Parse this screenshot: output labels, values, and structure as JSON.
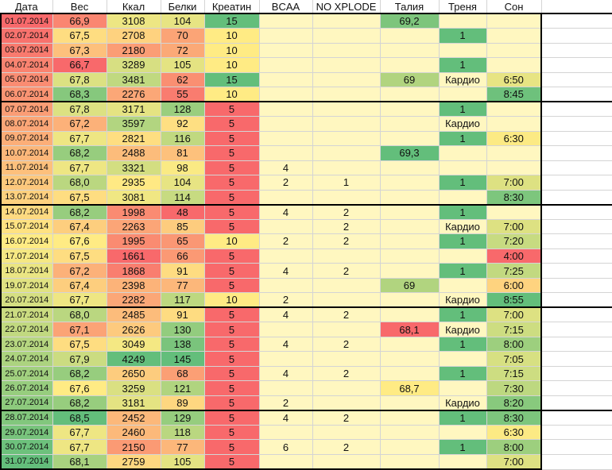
{
  "headers": [
    "Дата",
    "Вес",
    "Ккал",
    "Белки",
    "Креатин",
    "BCAA",
    "NO XPLODE",
    "Талия",
    "Треня",
    "Сон"
  ],
  "rows": [
    {
      "date": "01.07.2014",
      "ves": "66,9",
      "kcal": "3108",
      "belki": "104",
      "kreatin": "15",
      "bcaa": "",
      "nox": "",
      "talia": "69,2",
      "trenya": "",
      "son": ""
    },
    {
      "date": "02.07.2014",
      "ves": "67,5",
      "kcal": "2708",
      "belki": "70",
      "kreatin": "10",
      "bcaa": "",
      "nox": "",
      "talia": "",
      "trenya": "1",
      "son": ""
    },
    {
      "date": "03.07.2014",
      "ves": "67,3",
      "kcal": "2180",
      "belki": "72",
      "kreatin": "10",
      "bcaa": "",
      "nox": "",
      "talia": "",
      "trenya": "",
      "son": ""
    },
    {
      "date": "04.07.2014",
      "ves": "66,7",
      "kcal": "3289",
      "belki": "105",
      "kreatin": "10",
      "bcaa": "",
      "nox": "",
      "talia": "",
      "trenya": "1",
      "son": ""
    },
    {
      "date": "05.07.2014",
      "ves": "67,8",
      "kcal": "3481",
      "belki": "62",
      "kreatin": "15",
      "bcaa": "",
      "nox": "",
      "talia": "69",
      "trenya": "Кардио",
      "son": "6:50"
    },
    {
      "date": "06.07.2014",
      "ves": "68,3",
      "kcal": "2276",
      "belki": "55",
      "kreatin": "10",
      "bcaa": "",
      "nox": "",
      "talia": "",
      "trenya": "",
      "son": "8:45"
    },
    {
      "date": "07.07.2014",
      "ves": "67,8",
      "kcal": "3171",
      "belki": "128",
      "kreatin": "5",
      "bcaa": "",
      "nox": "",
      "talia": "",
      "trenya": "1",
      "son": ""
    },
    {
      "date": "08.07.2014",
      "ves": "67,2",
      "kcal": "3597",
      "belki": "92",
      "kreatin": "5",
      "bcaa": "",
      "nox": "",
      "talia": "",
      "trenya": "Кардио",
      "son": ""
    },
    {
      "date": "09.07.2014",
      "ves": "67,7",
      "kcal": "2821",
      "belki": "116",
      "kreatin": "5",
      "bcaa": "",
      "nox": "",
      "talia": "",
      "trenya": "1",
      "son": "6:30"
    },
    {
      "date": "10.07.2014",
      "ves": "68,2",
      "kcal": "2488",
      "belki": "81",
      "kreatin": "5",
      "bcaa": "",
      "nox": "",
      "talia": "69,3",
      "trenya": "",
      "son": ""
    },
    {
      "date": "11.07.2014",
      "ves": "67,7",
      "kcal": "3321",
      "belki": "98",
      "kreatin": "5",
      "bcaa": "4",
      "nox": "",
      "talia": "",
      "trenya": "",
      "son": ""
    },
    {
      "date": "12.07.2014",
      "ves": "68,0",
      "kcal": "2935",
      "belki": "104",
      "kreatin": "5",
      "bcaa": "2",
      "nox": "1",
      "talia": "",
      "trenya": "1",
      "son": "7:00"
    },
    {
      "date": "13.07.2014",
      "ves": "67,5",
      "kcal": "3081",
      "belki": "114",
      "kreatin": "5",
      "bcaa": "",
      "nox": "",
      "talia": "",
      "trenya": "",
      "son": "8:30"
    },
    {
      "date": "14.07.2014",
      "ves": "68,2",
      "kcal": "1998",
      "belki": "48",
      "kreatin": "5",
      "bcaa": "4",
      "nox": "2",
      "talia": "",
      "trenya": "1",
      "son": ""
    },
    {
      "date": "15.07.2014",
      "ves": "67,4",
      "kcal": "2263",
      "belki": "85",
      "kreatin": "5",
      "bcaa": "",
      "nox": "2",
      "talia": "",
      "trenya": "Кардио",
      "son": "7:00"
    },
    {
      "date": "16.07.2014",
      "ves": "67,6",
      "kcal": "1995",
      "belki": "65",
      "kreatin": "10",
      "bcaa": "2",
      "nox": "2",
      "talia": "",
      "trenya": "1",
      "son": "7:20"
    },
    {
      "date": "17.07.2014",
      "ves": "67,5",
      "kcal": "1661",
      "belki": "66",
      "kreatin": "5",
      "bcaa": "",
      "nox": "",
      "talia": "",
      "trenya": "",
      "son": "4:00"
    },
    {
      "date": "18.07.2014",
      "ves": "67,2",
      "kcal": "1868",
      "belki": "91",
      "kreatin": "5",
      "bcaa": "4",
      "nox": "2",
      "talia": "",
      "trenya": "1",
      "son": "7:25"
    },
    {
      "date": "19.07.2014",
      "ves": "67,4",
      "kcal": "2398",
      "belki": "77",
      "kreatin": "5",
      "bcaa": "",
      "nox": "",
      "talia": "69",
      "trenya": "",
      "son": "6:00"
    },
    {
      "date": "20.07.2014",
      "ves": "67,7",
      "kcal": "2282",
      "belki": "117",
      "kreatin": "10",
      "bcaa": "2",
      "nox": "",
      "talia": "",
      "trenya": "Кардио",
      "son": "8:55"
    },
    {
      "date": "21.07.2014",
      "ves": "68,0",
      "kcal": "2485",
      "belki": "91",
      "kreatin": "5",
      "bcaa": "4",
      "nox": "2",
      "talia": "",
      "trenya": "1",
      "son": "7:00"
    },
    {
      "date": "22.07.2014",
      "ves": "67,1",
      "kcal": "2626",
      "belki": "130",
      "kreatin": "5",
      "bcaa": "",
      "nox": "",
      "talia": "68,1",
      "trenya": "Кардио",
      "son": "7:15"
    },
    {
      "date": "23.07.2014",
      "ves": "67,5",
      "kcal": "3049",
      "belki": "138",
      "kreatin": "5",
      "bcaa": "4",
      "nox": "2",
      "talia": "",
      "trenya": "1",
      "son": "8:00"
    },
    {
      "date": "24.07.2014",
      "ves": "67,9",
      "kcal": "4249",
      "belki": "145",
      "kreatin": "5",
      "bcaa": "",
      "nox": "",
      "talia": "",
      "trenya": "",
      "son": "7:05"
    },
    {
      "date": "25.07.2014",
      "ves": "68,2",
      "kcal": "2650",
      "belki": "68",
      "kreatin": "5",
      "bcaa": "4",
      "nox": "2",
      "talia": "",
      "trenya": "1",
      "son": "7:15"
    },
    {
      "date": "26.07.2014",
      "ves": "67,6",
      "kcal": "3259",
      "belki": "121",
      "kreatin": "5",
      "bcaa": "",
      "nox": "",
      "talia": "68,7",
      "trenya": "",
      "son": "7:30"
    },
    {
      "date": "27.07.2014",
      "ves": "68,2",
      "kcal": "3181",
      "belki": "89",
      "kreatin": "5",
      "bcaa": "2",
      "nox": "",
      "talia": "",
      "trenya": "Кардио",
      "son": "8:20"
    },
    {
      "date": "28.07.2014",
      "ves": "68,5",
      "kcal": "2452",
      "belki": "129",
      "kreatin": "5",
      "bcaa": "4",
      "nox": "2",
      "talia": "",
      "trenya": "1",
      "son": "8:30"
    },
    {
      "date": "29.07.2014",
      "ves": "67,7",
      "kcal": "2460",
      "belki": "118",
      "kreatin": "5",
      "bcaa": "",
      "nox": "",
      "talia": "",
      "trenya": "",
      "son": "6:30"
    },
    {
      "date": "30.07.2014",
      "ves": "67,7",
      "kcal": "2150",
      "belki": "77",
      "kreatin": "5",
      "bcaa": "6",
      "nox": "2",
      "talia": "",
      "trenya": "1",
      "son": "8:00"
    },
    {
      "date": "31.07.2014",
      "ves": "68,1",
      "kcal": "2759",
      "belki": "105",
      "kreatin": "5",
      "bcaa": "",
      "nox": "",
      "talia": "",
      "trenya": "",
      "son": "7:00"
    }
  ],
  "palette": {
    "low": "#f8696b",
    "mid": "#ffeb84",
    "high": "#63be7b",
    "empty": "#fff7c0",
    "pad": "#ffffff"
  },
  "color_scale_ranges": {
    "ves": [
      66.7,
      68.5
    ],
    "kcal": [
      1661,
      4249
    ],
    "belki": [
      48,
      145
    ],
    "kreatin": [
      5,
      15
    ],
    "talia": [
      68.1,
      69.3
    ],
    "son": [
      4.0,
      8.917
    ]
  },
  "week_starts": [
    0,
    6,
    13,
    20,
    27
  ]
}
